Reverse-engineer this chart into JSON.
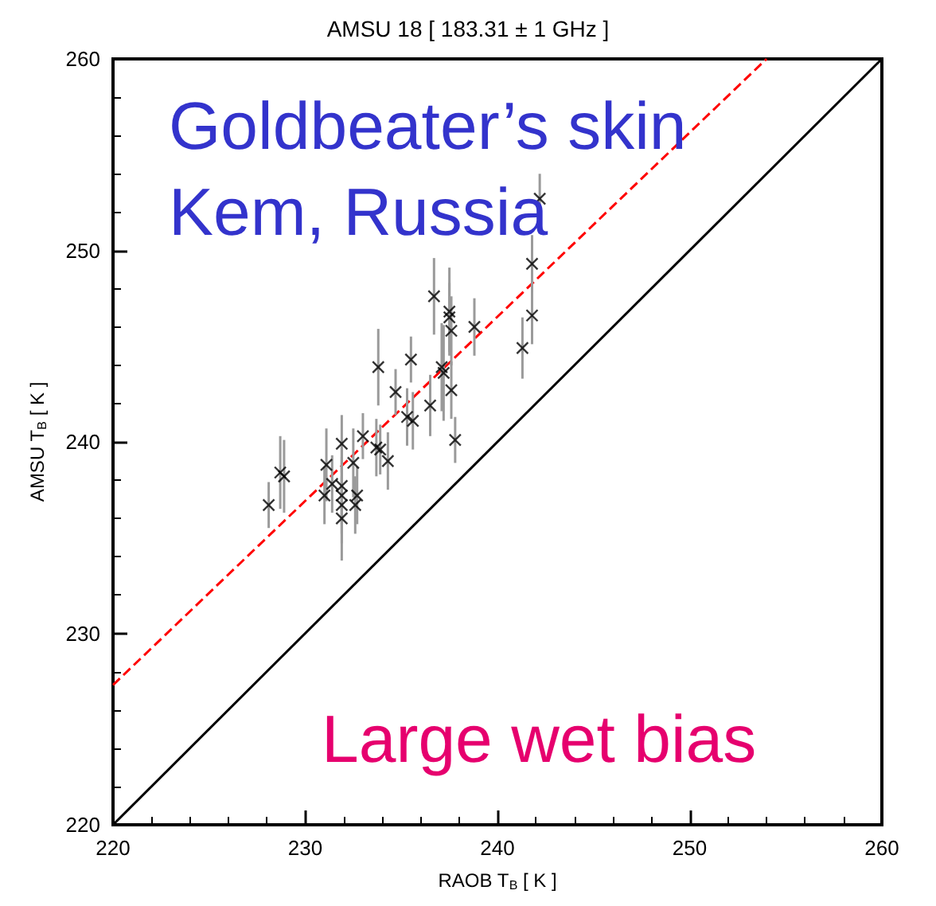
{
  "chart_data": {
    "type": "scatter",
    "title": "AMSU 18 [ 183.31 ± 1 GHz ]",
    "xlabel": "RAOB T$_{B}$ [ K ]",
    "ylabel": "AMSU T$_{B}$ [ K ]",
    "annotations": [
      "Goldbeater’s skin",
      "Kem, Russia",
      "Large wet bias"
    ],
    "xlim": [
      220,
      260
    ],
    "ylim": [
      220,
      260
    ],
    "xticks": [
      220,
      230,
      240,
      250,
      260
    ],
    "yticks": [
      220,
      230,
      240,
      250,
      260
    ],
    "grid": false,
    "marker": "cross",
    "series": [
      {
        "color": "#000000",
        "x": [
          228.1,
          228.7,
          228.9,
          231.1,
          231.0,
          231.4,
          231.9,
          231.9,
          231.9,
          231.9,
          231.9,
          232.5,
          232.7,
          232.6,
          233.0,
          233.8,
          233.7,
          233.9,
          234.3,
          234.7,
          235.3,
          235.6,
          235.5,
          236.5,
          236.7,
          237.1,
          237.2,
          237.5,
          237.5,
          237.6,
          237.6,
          237.8,
          238.8,
          241.3,
          241.8,
          241.8,
          242.2
        ],
        "values": [
          236.7,
          238.4,
          238.2,
          238.8,
          237.2,
          237.8,
          239.9,
          237.7,
          237.2,
          236.7,
          236.0,
          238.9,
          237.2,
          236.7,
          240.3,
          243.9,
          239.7,
          239.6,
          239.0,
          242.6,
          241.3,
          241.1,
          244.3,
          241.9,
          247.6,
          243.9,
          243.6,
          246.8,
          246.5,
          245.8,
          242.7,
          240.1,
          246.0,
          244.9,
          249.3,
          246.6,
          252.7
        ],
        "errors": [
          1.2,
          1.9,
          1.9,
          1.9,
          1.5,
          1.5,
          1.5,
          2.0,
          2.0,
          2.0,
          2.2,
          1.8,
          1.5,
          1.5,
          1.2,
          2.0,
          1.5,
          1.3,
          1.5,
          1.2,
          1.5,
          1.5,
          1.2,
          1.6,
          2.0,
          2.3,
          2.5,
          2.3,
          1.8,
          1.8,
          1.5,
          1.2,
          1.5,
          1.6,
          1.5,
          1.5,
          1.3
        ]
      },
      {
        "type": "line",
        "color": "#ff0000",
        "line_style": "dashed",
        "marker": "none",
        "x": [
          220,
          254
        ],
        "values": [
          227.3,
          260
        ]
      },
      {
        "type": "line",
        "color": "#000000",
        "line_style": "solid",
        "marker": "none",
        "x": [
          220,
          260
        ],
        "values": [
          220,
          260
        ]
      }
    ]
  }
}
